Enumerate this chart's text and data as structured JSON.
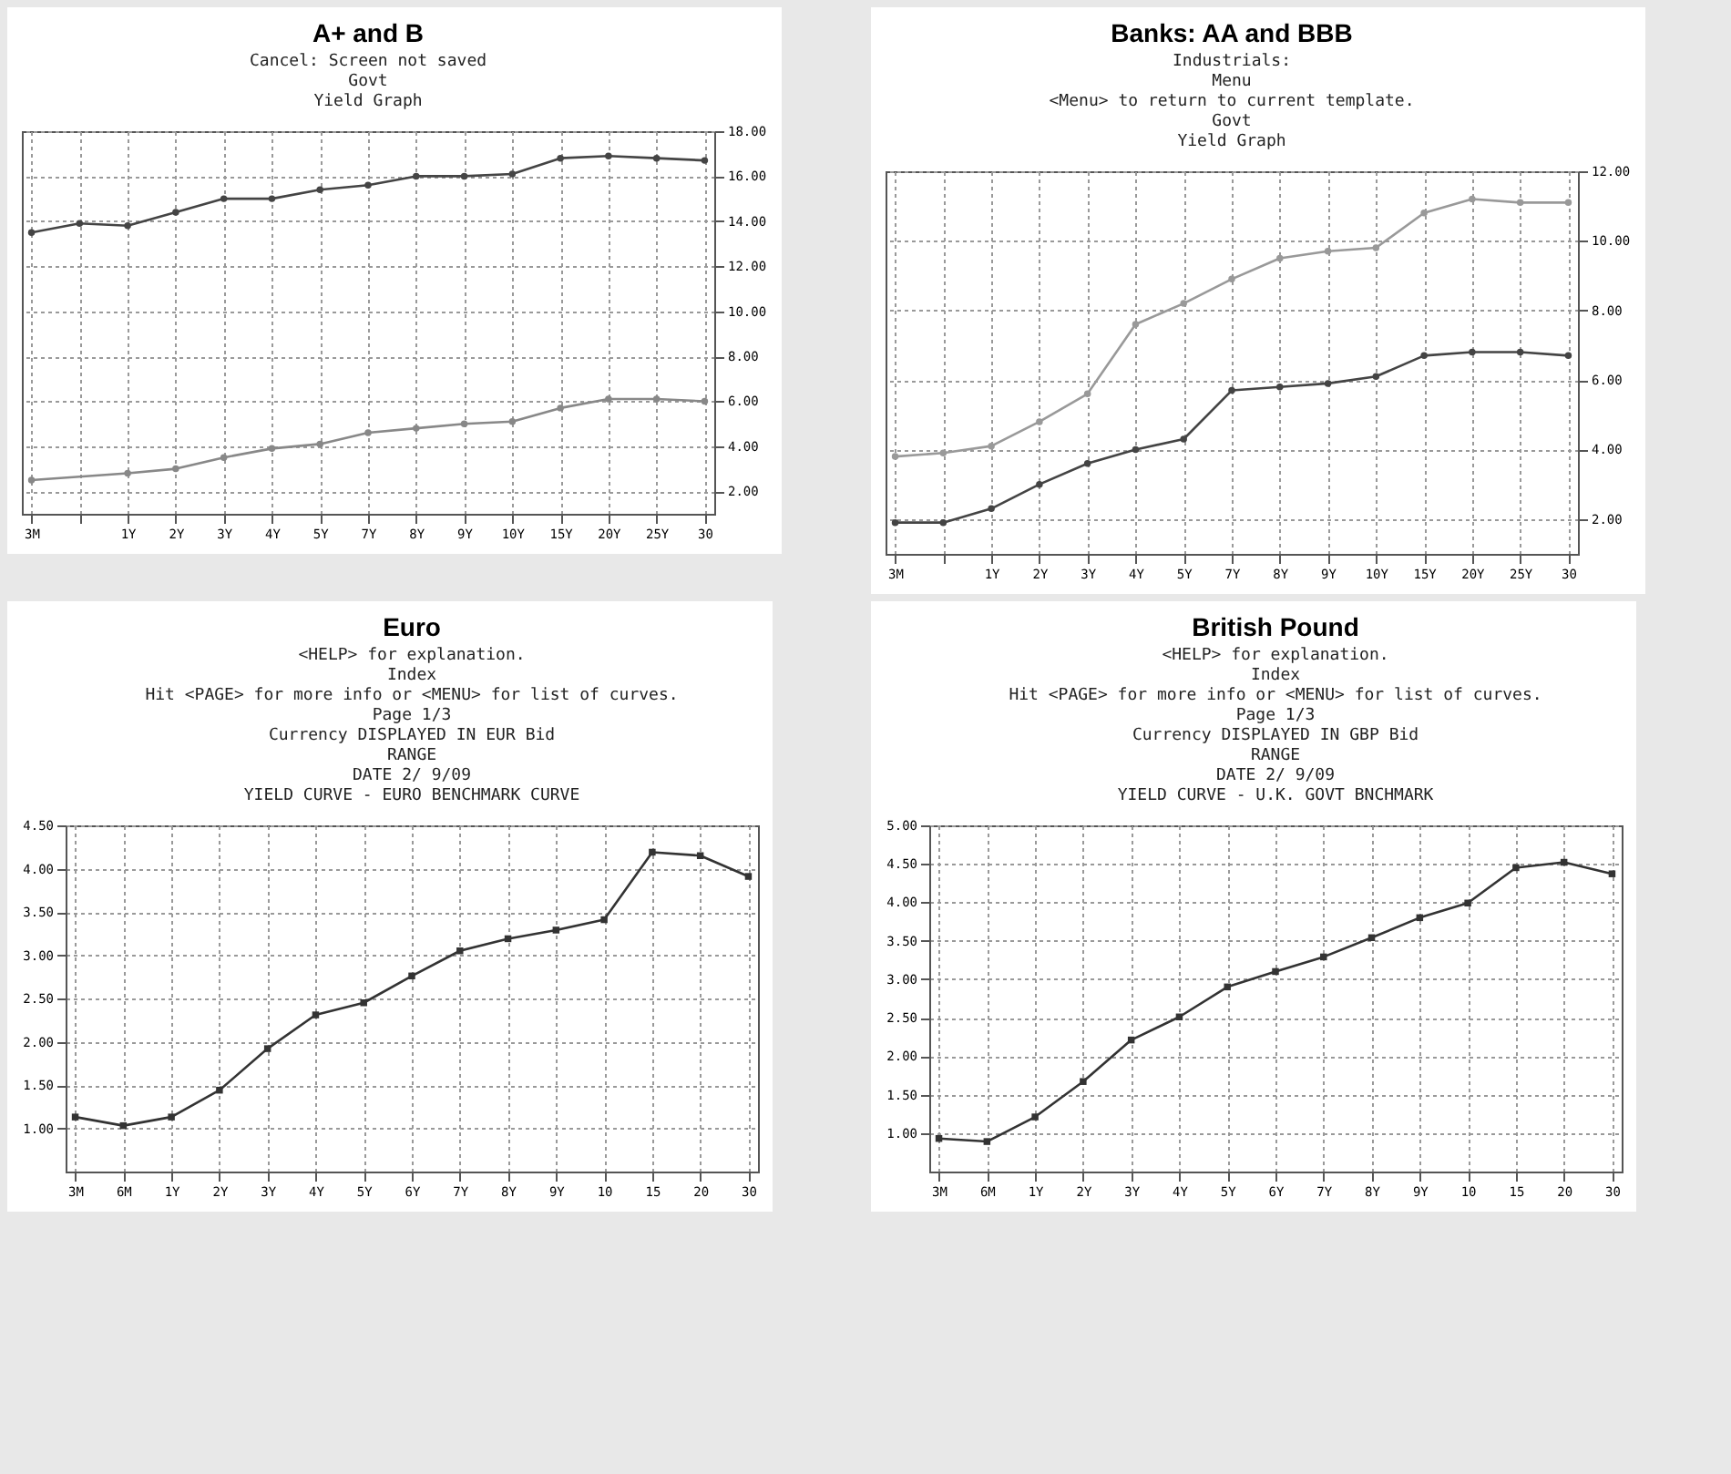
{
  "chart_data": [
    {
      "type": "line",
      "title": "A+ and B",
      "subtitle": "Yield Graph",
      "annotations": [
        "Cancel: Screen not saved",
        "Govt"
      ],
      "categories": [
        "3M",
        null,
        "1Y",
        "2Y",
        "3Y",
        "4Y",
        "5Y",
        "7Y",
        "8Y",
        "9Y",
        "10Y",
        "15Y",
        "20Y",
        "25Y",
        "30"
      ],
      "series": [
        {
          "color": "#444444",
          "values": [
            13.5,
            13.9,
            13.8,
            14.4,
            15.0,
            15.0,
            15.4,
            15.6,
            16.0,
            16.0,
            16.1,
            16.8,
            16.9,
            16.8,
            16.7
          ]
        },
        {
          "color": "#888888",
          "values": [
            2.5,
            null,
            2.8,
            3.0,
            3.5,
            3.9,
            4.1,
            4.6,
            4.8,
            5.0,
            5.1,
            5.7,
            6.1,
            6.1,
            6.0
          ]
        }
      ],
      "ylim": [
        1,
        18
      ],
      "yticks": [
        {
          "value": 2,
          "label": "2.00"
        },
        {
          "value": 4,
          "label": "4.00"
        },
        {
          "value": 6,
          "label": "6.00"
        },
        {
          "value": 8,
          "label": "8.00"
        },
        {
          "value": 10,
          "label": "10.00"
        },
        {
          "value": 12,
          "label": "12.00"
        },
        {
          "value": 14,
          "label": "14.00"
        },
        {
          "value": 16,
          "label": "16.00"
        },
        {
          "value": 18,
          "label": "18.00"
        }
      ],
      "grid": true,
      "marker": "circle"
    },
    {
      "type": "line",
      "title": "Banks: AA and BBB",
      "subtitle": "Yield Graph",
      "annotations": [
        "Industrials:",
        "Menu",
        "<Menu> to return to current template.",
        "Govt"
      ],
      "categories": [
        "3M",
        null,
        "1Y",
        "2Y",
        "3Y",
        "4Y",
        "5Y",
        "7Y",
        "8Y",
        "9Y",
        "10Y",
        "15Y",
        "20Y",
        "25Y",
        "30"
      ],
      "series": [
        {
          "color": "#999999",
          "values": [
            3.8,
            3.9,
            4.1,
            4.8,
            5.6,
            7.6,
            8.2,
            8.9,
            9.5,
            9.7,
            9.8,
            10.8,
            11.2,
            11.1,
            11.1
          ]
        },
        {
          "color": "#444444",
          "values": [
            1.9,
            1.9,
            2.3,
            3.0,
            3.6,
            4.0,
            4.3,
            5.7,
            5.8,
            5.9,
            6.1,
            6.7,
            6.8,
            6.8,
            6.7
          ]
        }
      ],
      "ylim": [
        1,
        12
      ],
      "yticks": [
        {
          "value": 2,
          "label": "2.00"
        },
        {
          "value": 4,
          "label": "4.00"
        },
        {
          "value": 6,
          "label": "6.00"
        },
        {
          "value": 8,
          "label": "8.00"
        },
        {
          "value": 10,
          "label": "10.00"
        },
        {
          "value": 12,
          "label": "12.00"
        }
      ],
      "grid": true,
      "marker": "circle"
    },
    {
      "type": "line",
      "title": "Euro",
      "subtitle": "YIELD CURVE - EURO BENCHMARK CURVE",
      "annotations": [
        "<HELP> for explanation.",
        "Index",
        "Hit <PAGE> for more info or <MENU> for list of curves.",
        "Page 1/3",
        "Currency DISPLAYED IN EUR Bid",
        "RANGE",
        "DATE 2/ 9/09"
      ],
      "categories": [
        "3M",
        "6M",
        "1Y",
        "2Y",
        "3Y",
        "4Y",
        "5Y",
        "6Y",
        "7Y",
        "8Y",
        "9Y",
        "10",
        "15",
        "20",
        "30"
      ],
      "series": [
        {
          "color": "#333333",
          "values": [
            1.13,
            1.03,
            1.13,
            1.44,
            1.92,
            2.31,
            2.45,
            2.76,
            3.05,
            3.19,
            3.29,
            3.41,
            4.19,
            4.15,
            3.91
          ]
        }
      ],
      "ylim": [
        0.5,
        4.5
      ],
      "yticks": [
        {
          "value": 1,
          "label": "1.00"
        },
        {
          "value": 1.5,
          "label": "1.50"
        },
        {
          "value": 2,
          "label": "2.00"
        },
        {
          "value": 2.5,
          "label": "2.50"
        },
        {
          "value": 3,
          "label": "3.00"
        },
        {
          "value": 3.5,
          "label": "3.50"
        },
        {
          "value": 4,
          "label": "4.00"
        },
        {
          "value": 4.5,
          "label": "4.50"
        }
      ],
      "grid": true,
      "marker": "square"
    },
    {
      "type": "line",
      "title": "British Pound",
      "subtitle": "YIELD CURVE - U.K. GOVT BNCHMARK",
      "annotations": [
        "<HELP> for explanation.",
        "Index",
        "Hit <PAGE> for more info or <MENU> for list of curves.",
        "Page 1/3",
        "Currency DISPLAYED IN GBP Bid",
        "RANGE",
        "DATE 2/ 9/09"
      ],
      "categories": [
        "3M",
        "6M",
        "1Y",
        "2Y",
        "3Y",
        "4Y",
        "5Y",
        "6Y",
        "7Y",
        "8Y",
        "9Y",
        "10",
        "15",
        "20",
        "30"
      ],
      "series": [
        {
          "color": "#333333",
          "values": [
            0.93,
            0.89,
            1.21,
            1.67,
            2.21,
            2.51,
            2.9,
            3.1,
            3.29,
            3.54,
            3.8,
            3.99,
            4.45,
            4.52,
            4.37
          ]
        }
      ],
      "ylim": [
        0.5,
        5
      ],
      "yticks": [
        {
          "value": 1,
          "label": "1.00"
        },
        {
          "value": 1.5,
          "label": "1.50"
        },
        {
          "value": 2,
          "label": "2.00"
        },
        {
          "value": 2.5,
          "label": "2.50"
        },
        {
          "value": 3,
          "label": "3.00"
        },
        {
          "value": 3.5,
          "label": "3.50"
        },
        {
          "value": 4,
          "label": "4.00"
        },
        {
          "value": 4.5,
          "label": "4.50"
        },
        {
          "value": 5,
          "label": "5.00"
        }
      ],
      "grid": true,
      "marker": "square"
    }
  ]
}
